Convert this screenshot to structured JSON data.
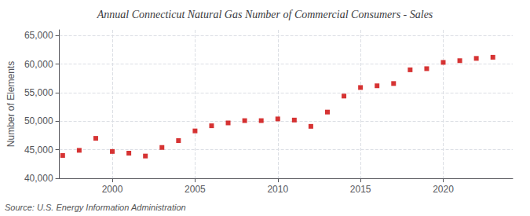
{
  "chart_data": {
    "type": "scatter",
    "title": "Annual Connecticut Natural Gas Number of Commercial Consumers - Sales",
    "ylabel": "Number of Elements",
    "annotation": "Source: U.S. Energy Information Administration",
    "color": "#cc0000",
    "marker": "square",
    "grid": true,
    "xlim": [
      1996.8,
      2024.2
    ],
    "xticks": [
      2000,
      2005,
      2010,
      2015,
      2020
    ],
    "ylim": [
      40000,
      66000
    ],
    "yticks": [
      {
        "value": 40000,
        "label": "40,000"
      },
      {
        "value": 45000,
        "label": "45,000"
      },
      {
        "value": 50000,
        "label": "50,000"
      },
      {
        "value": 55000,
        "label": "55,000"
      },
      {
        "value": 60000,
        "label": "60,000"
      },
      {
        "value": 65000,
        "label": "65,000"
      }
    ],
    "x": [
      1997,
      1998,
      1999,
      2000,
      2001,
      2002,
      2003,
      2004,
      2005,
      2006,
      2007,
      2008,
      2009,
      2010,
      2011,
      2012,
      2013,
      2014,
      2015,
      2016,
      2017,
      2018,
      2019,
      2020,
      2021,
      2022,
      2023
    ],
    "values": [
      44000,
      44900,
      47000,
      44700,
      44400,
      43900,
      45400,
      46600,
      48300,
      49200,
      49700,
      50100,
      50100,
      50400,
      50200,
      49100,
      51600,
      54400,
      55900,
      56200,
      56600,
      59000,
      59200,
      60300,
      60600,
      61000,
      61200
    ]
  }
}
